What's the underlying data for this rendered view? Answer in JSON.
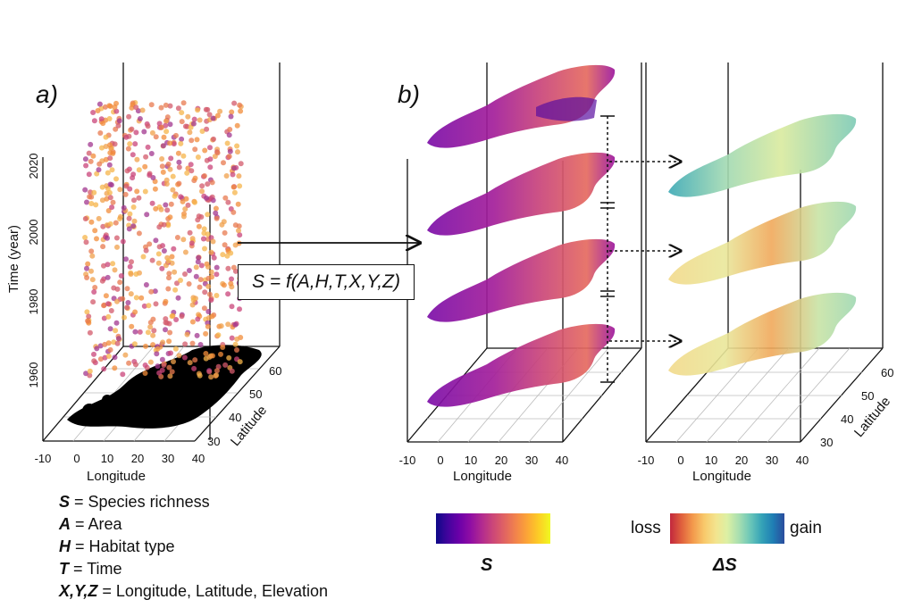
{
  "panels": {
    "a_label": "a)",
    "b_label": "b)"
  },
  "panel_a": {
    "z_axis_title": "Time (year)",
    "z_ticks": [
      "1960",
      "1980",
      "2000",
      "2020"
    ],
    "x_axis_title": "Longitude",
    "x_ticks": [
      "-10",
      "0",
      "10",
      "20",
      "30",
      "40"
    ],
    "y_axis_title": "Latitude",
    "y_ticks": [
      "30",
      "40",
      "50",
      "60"
    ]
  },
  "panel_b_left": {
    "x_axis_title": "Longitude",
    "x_ticks": [
      "-10",
      "0",
      "10",
      "20",
      "30",
      "40"
    ]
  },
  "panel_b_right": {
    "x_axis_title": "Longitude",
    "x_ticks": [
      "-10",
      "0",
      "10",
      "20",
      "30",
      "40"
    ],
    "y_axis_title": "Latitude",
    "y_ticks": [
      "30",
      "40",
      "50",
      "60"
    ]
  },
  "formula": "S = f(A,H,T,X,Y,Z)",
  "legend": [
    {
      "symbol": "S",
      "text": " = Species richness"
    },
    {
      "symbol": "A",
      "text": " = Area"
    },
    {
      "symbol": "H",
      "text": " = Habitat type"
    },
    {
      "symbol": "T",
      "text": " = Time"
    },
    {
      "symbol": "X,Y,Z",
      "text": " = Longitude, Latitude, Elevation"
    }
  ],
  "colorbar_s": {
    "title": "S"
  },
  "colorbar_delta": {
    "title": "ΔS",
    "left_label": "loss",
    "right_label": "gain"
  },
  "colors": {
    "plasma_dark": "#6a00a8",
    "plasma_light": "#fca636",
    "loss": "#c2273d",
    "gain": "#2a4c9d"
  }
}
